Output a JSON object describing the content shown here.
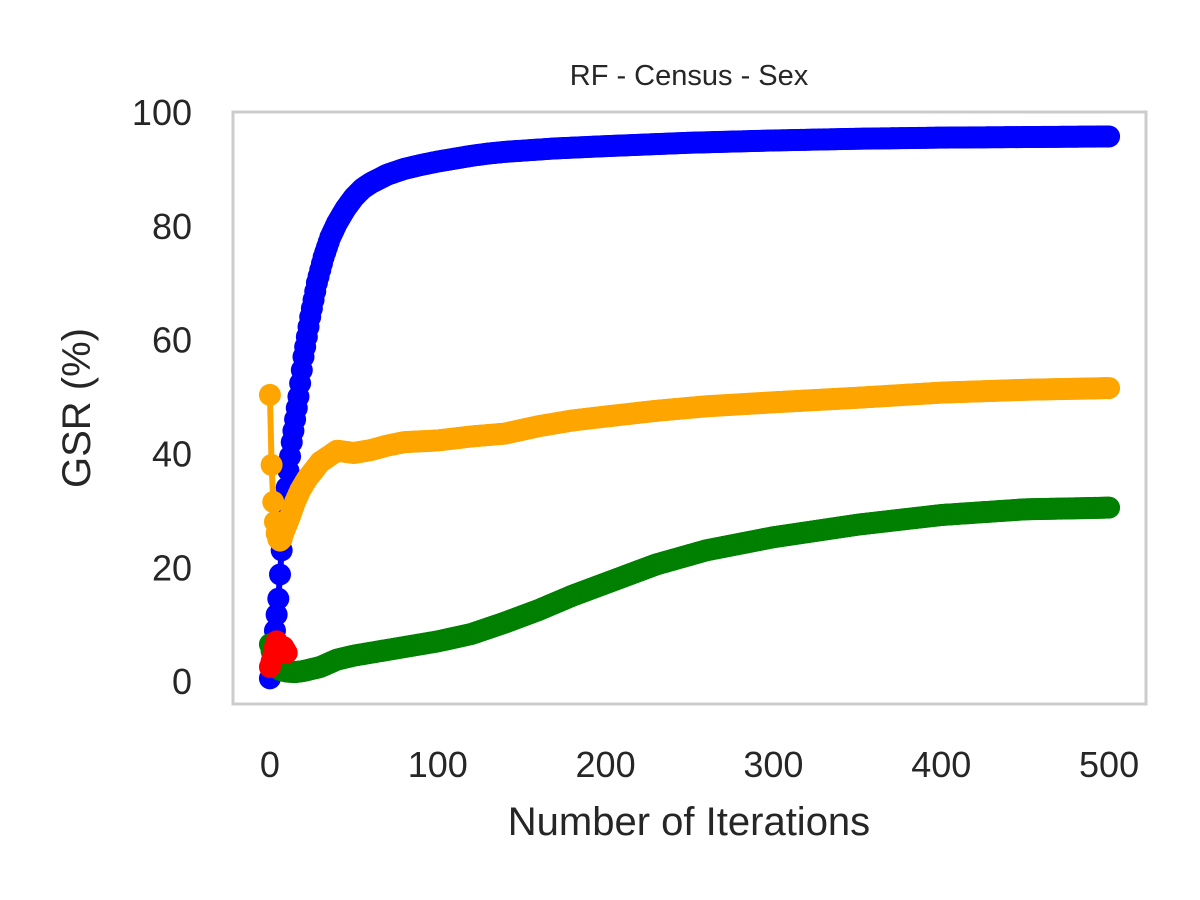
{
  "chart_data": {
    "type": "line",
    "title": "RF - Census - Sex",
    "xlabel": "Number of Iterations",
    "ylabel": "GSR (%)",
    "xlim": [
      -22,
      522
    ],
    "ylim": [
      -4,
      100
    ],
    "xticks": [
      0,
      100,
      200,
      300,
      400,
      500
    ],
    "yticks": [
      0,
      20,
      40,
      60,
      80,
      100
    ],
    "grid": false,
    "legend": "none",
    "series": [
      {
        "color": "#0000ff",
        "x": [
          0,
          5,
          7,
          9,
          11,
          13,
          15,
          17,
          20,
          24,
          28,
          32,
          36,
          40,
          45,
          50,
          55,
          60,
          70,
          80,
          90,
          100,
          110,
          120,
          130,
          140,
          150,
          170,
          200,
          250,
          300,
          350,
          400,
          450,
          500
        ],
        "y": [
          0.5,
          14.5,
          23,
          31,
          37,
          42,
          46,
          50,
          57,
          64,
          70,
          74.5,
          78,
          80.5,
          83,
          85,
          86.5,
          87.5,
          89,
          90,
          90.7,
          91.3,
          91.8,
          92.3,
          92.7,
          93,
          93.2,
          93.6,
          94,
          94.6,
          95,
          95.3,
          95.5,
          95.6,
          95.7
        ]
      },
      {
        "color": "#ffa500",
        "x": [
          0,
          1,
          2,
          3,
          4,
          5,
          6,
          7,
          8,
          10,
          12,
          15,
          18,
          22,
          26,
          30,
          35,
          40,
          45,
          50,
          60,
          70,
          80,
          100,
          120,
          140,
          160,
          180,
          200,
          230,
          260,
          300,
          350,
          400,
          450,
          500
        ],
        "y": [
          50.3,
          38,
          31.5,
          28,
          26,
          25,
          24.7,
          25,
          26,
          27.5,
          29,
          31.5,
          33.5,
          35.5,
          37,
          38.5,
          39.5,
          40.5,
          40.3,
          40.1,
          40.6,
          41.4,
          42,
          42.3,
          43,
          43.5,
          44.8,
          45.8,
          46.5,
          47.5,
          48.3,
          49,
          49.8,
          50.7,
          51.2,
          51.5
        ]
      },
      {
        "color": "#008000",
        "x": [
          0,
          3,
          6,
          10,
          15,
          20,
          30,
          40,
          50,
          60,
          70,
          80,
          100,
          120,
          140,
          160,
          180,
          200,
          230,
          260,
          300,
          350,
          400,
          450,
          500
        ],
        "y": [
          6.5,
          2.8,
          2,
          1.7,
          1.6,
          1.8,
          2.5,
          3.8,
          4.5,
          5,
          5.5,
          6,
          7,
          8.3,
          10.3,
          12.5,
          15,
          17.2,
          20.5,
          23,
          25.3,
          27.5,
          29.2,
          30.2,
          30.5
        ]
      },
      {
        "color": "#ff0000",
        "x": [
          0,
          1,
          2,
          3,
          4,
          5,
          6,
          8,
          10
        ],
        "y": [
          2.5,
          3.5,
          4.5,
          6,
          7,
          6.5,
          5.5,
          6,
          5
        ]
      }
    ]
  }
}
